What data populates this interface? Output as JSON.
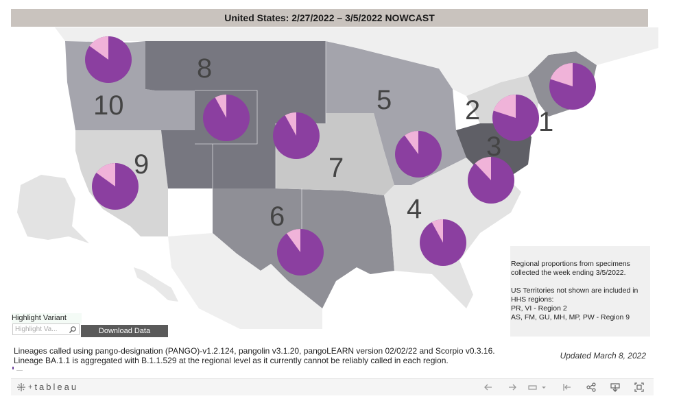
{
  "title": "United States: 2/27/2022 – 3/5/2022 NOWCAST",
  "regions": [
    {
      "id": "1",
      "label": "1",
      "variant_share": 0.8,
      "other_share": 0.2
    },
    {
      "id": "2",
      "label": "2",
      "variant_share": 0.8,
      "other_share": 0.2
    },
    {
      "id": "3",
      "label": "3",
      "variant_share": 0.88,
      "other_share": 0.12
    },
    {
      "id": "4",
      "label": "4",
      "variant_share": 0.92,
      "other_share": 0.08
    },
    {
      "id": "5",
      "label": "5",
      "variant_share": 0.9,
      "other_share": 0.1
    },
    {
      "id": "6",
      "label": "6",
      "variant_share": 0.9,
      "other_share": 0.1
    },
    {
      "id": "7",
      "label": "7",
      "variant_share": 0.92,
      "other_share": 0.08
    },
    {
      "id": "8",
      "label": "8",
      "variant_share": 0.92,
      "other_share": 0.08
    },
    {
      "id": "9",
      "label": "9",
      "variant_share": 0.85,
      "other_share": 0.15
    },
    {
      "id": "10",
      "label": "10",
      "variant_share": 0.85,
      "other_share": 0.15
    }
  ],
  "colors": {
    "variant": "#8b3fa0",
    "other": "#f0b3d9",
    "title_bg": "#c9c3be"
  },
  "info": {
    "line1": "Regional proportions from specimens\ncollected the week ending 3/5/2022.",
    "line2": "US Territories not shown are included in\nHHS regions:\nPR, VI - Region 2\nAS, FM, GU, MH, MP, PW - Region 9"
  },
  "highlight": {
    "label": "Highlight Variant",
    "placeholder": "Highlight Va..."
  },
  "download_label": "Download Data",
  "footnote": {
    "line1": "Lineages called using pango-designation (PANGO)-v1.2.124, pangolin v3.1.20, pangoLEARN version 02/02/22 and Scorpio v0.3.16.",
    "line2": "Lineage BA.1.1 is aggregated with B.1.1.529 at the regional level as it currently cannot be reliably called in each region."
  },
  "updated": "Updated March 8, 2022",
  "tableau_logo": "tableau",
  "toolbar_icons": [
    "undo-icon",
    "redo-icon",
    "revert-icon",
    "reset-icon",
    "share-icon",
    "download-icon",
    "fullscreen-icon"
  ]
}
